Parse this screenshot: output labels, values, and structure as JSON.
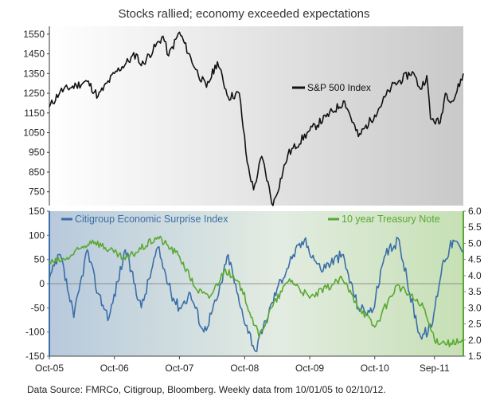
{
  "title": "Stocks rallied; economy exceeded expectations",
  "source": "Data Source: FMRCo, Citigroup, Bloomberg. Weekly data from 10/01/05 to 02/10/12.",
  "chart_data": [
    {
      "type": "line",
      "series": [
        {
          "name": "S&P 500 Index",
          "color": "#111111",
          "points": [
            [
              "2005-10-01",
              1180
            ],
            [
              "2005-12-01",
              1260
            ],
            [
              "2006-03-01",
              1290
            ],
            [
              "2006-05-01",
              1310
            ],
            [
              "2006-07-01",
              1235
            ],
            [
              "2006-10-01",
              1350
            ],
            [
              "2007-02-01",
              1450
            ],
            [
              "2007-03-01",
              1390
            ],
            [
              "2007-07-01",
              1540
            ],
            [
              "2007-08-01",
              1440
            ],
            [
              "2007-10-01",
              1560
            ],
            [
              "2008-01-01",
              1370
            ],
            [
              "2008-03-01",
              1280
            ],
            [
              "2008-05-01",
              1410
            ],
            [
              "2008-07-01",
              1230
            ],
            [
              "2008-09-01",
              1250
            ],
            [
              "2008-10-15",
              900
            ],
            [
              "2008-11-20",
              760
            ],
            [
              "2009-01-05",
              930
            ],
            [
              "2009-03-09",
              680
            ],
            [
              "2009-06-01",
              940
            ],
            [
              "2009-10-01",
              1060
            ],
            [
              "2010-01-01",
              1130
            ],
            [
              "2010-04-15",
              1210
            ],
            [
              "2010-07-01",
              1030
            ],
            [
              "2010-10-01",
              1140
            ],
            [
              "2011-01-01",
              1280
            ],
            [
              "2011-04-30",
              1360
            ],
            [
              "2011-06-15",
              1270
            ],
            [
              "2011-07-20",
              1340
            ],
            [
              "2011-08-10",
              1120
            ],
            [
              "2011-10-03",
              1100
            ],
            [
              "2011-11-01",
              1250
            ],
            [
              "2011-12-15",
              1210
            ],
            [
              "2012-02-10",
              1350
            ]
          ]
        }
      ],
      "legend": "right",
      "y_ticks": [
        750,
        850,
        950,
        1050,
        1150,
        1250,
        1350,
        1450,
        1550
      ],
      "ylim": [
        680,
        1590
      ],
      "grid": false,
      "background": "gradient-white-gray"
    },
    {
      "type": "line",
      "series": [
        {
          "name": "Citigroup Economic Surprise Index",
          "axis": "left",
          "color": "#3a6ea8",
          "points": [
            [
              "2005-10-01",
              10
            ],
            [
              "2005-12-01",
              60
            ],
            [
              "2006-02-15",
              -70
            ],
            [
              "2006-05-01",
              70
            ],
            [
              "2006-07-01",
              -20
            ],
            [
              "2006-09-01",
              -70
            ],
            [
              "2006-12-01",
              70
            ],
            [
              "2007-03-01",
              -50
            ],
            [
              "2007-06-01",
              75
            ],
            [
              "2007-08-15",
              -20
            ],
            [
              "2007-10-01",
              -50
            ],
            [
              "2007-12-01",
              -20
            ],
            [
              "2008-02-15",
              -100
            ],
            [
              "2008-05-01",
              -30
            ],
            [
              "2008-07-01",
              60
            ],
            [
              "2008-09-01",
              -40
            ],
            [
              "2008-12-01",
              -140
            ],
            [
              "2009-04-01",
              -10
            ],
            [
              "2009-07-01",
              60
            ],
            [
              "2009-09-01",
              90
            ],
            [
              "2009-12-01",
              30
            ],
            [
              "2010-04-01",
              60
            ],
            [
              "2010-07-01",
              -50
            ],
            [
              "2010-09-15",
              -60
            ],
            [
              "2010-12-01",
              60
            ],
            [
              "2011-02-15",
              90
            ],
            [
              "2011-04-15",
              -20
            ],
            [
              "2011-06-15",
              -110
            ],
            [
              "2011-08-15",
              -90
            ],
            [
              "2011-10-15",
              40
            ],
            [
              "2011-12-15",
              90
            ],
            [
              "2012-02-10",
              65
            ]
          ]
        },
        {
          "name": "10 year Treasury Note",
          "axis": "right",
          "color": "#5aa832",
          "points": [
            [
              "2005-10-01",
              4.4
            ],
            [
              "2006-01-01",
              4.5
            ],
            [
              "2006-06-01",
              5.1
            ],
            [
              "2006-12-01",
              4.5
            ],
            [
              "2007-06-01",
              5.2
            ],
            [
              "2007-10-01",
              4.6
            ],
            [
              "2008-01-01",
              3.6
            ],
            [
              "2008-03-15",
              3.3
            ],
            [
              "2008-06-15",
              4.2
            ],
            [
              "2008-09-15",
              3.6
            ],
            [
              "2008-12-20",
              2.1
            ],
            [
              "2009-03-01",
              3.0
            ],
            [
              "2009-06-10",
              3.9
            ],
            [
              "2009-10-01",
              3.3
            ],
            [
              "2010-04-01",
              3.9
            ],
            [
              "2010-06-15",
              3.2
            ],
            [
              "2010-10-01",
              2.4
            ],
            [
              "2011-02-01",
              3.7
            ],
            [
              "2011-04-15",
              3.4
            ],
            [
              "2011-07-01",
              3.0
            ],
            [
              "2011-09-01",
              2.0
            ],
            [
              "2011-12-01",
              1.9
            ],
            [
              "2012-02-10",
              1.95
            ]
          ]
        }
      ],
      "legend": "top",
      "y_ticks_left": [
        -150,
        -100,
        -50,
        0,
        50,
        100,
        150
      ],
      "ylim_left": [
        -150,
        150
      ],
      "y_ticks_right": [
        1.5,
        2.0,
        2.5,
        3.0,
        3.5,
        4.0,
        4.5,
        5.0,
        5.5,
        6.0
      ],
      "ylim_right": [
        1.5,
        6.0
      ],
      "zero_line": true,
      "background": "gradient-blue-green"
    }
  ],
  "x_axis": {
    "range": [
      "2005-10-01",
      "2012-02-10"
    ],
    "ticks": [
      {
        "date": "2005-10-01",
        "label": "Oct-05"
      },
      {
        "date": "2006-10-01",
        "label": "Oct-06"
      },
      {
        "date": "2007-10-01",
        "label": "Oct-07"
      },
      {
        "date": "2008-10-01",
        "label": "Oct-08"
      },
      {
        "date": "2009-10-01",
        "label": "Oct-09"
      },
      {
        "date": "2010-10-01",
        "label": "Oct-10"
      },
      {
        "date": "2011-09-01",
        "label": "Sep-11"
      }
    ]
  }
}
